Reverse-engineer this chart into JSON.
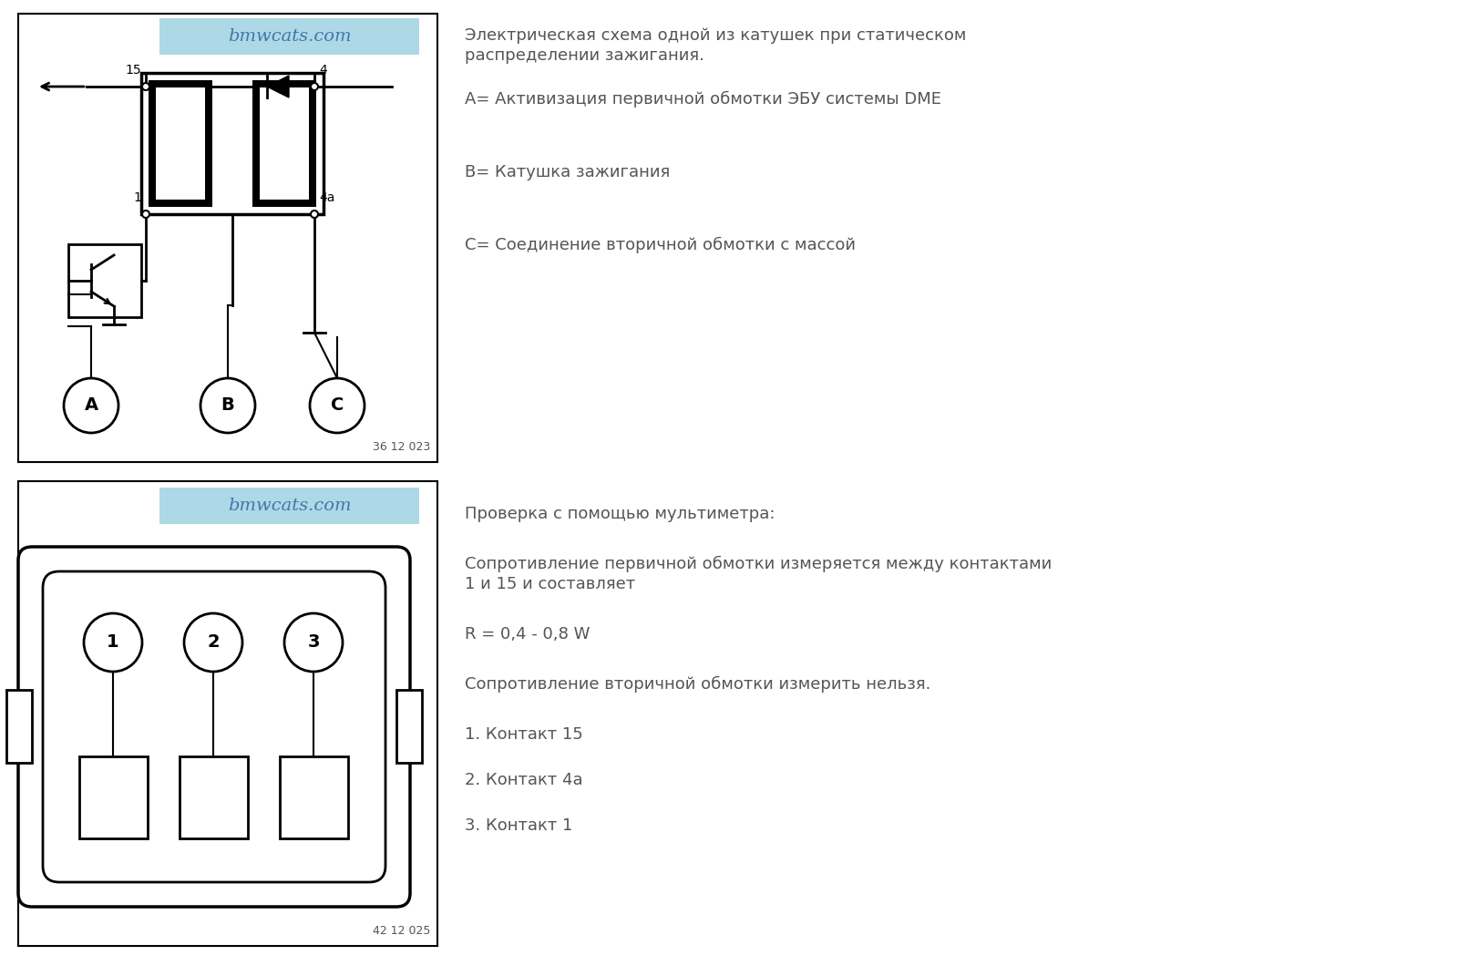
{
  "bg_color": "#ffffff",
  "text_color": "#555555",
  "watermark_bg": "#add8e6",
  "watermark_text_color": "#4477aa",
  "watermark_text": "bmwcats.com",
  "top_right_texts": [
    "Электрическая схема одной из катушек при статическом",
    "распределении зажигания.",
    "A= Активизация первичной обмотки ЭБУ системы DME",
    "B= Катушка зажигания",
    "C= Соединение вторичной обмотки с массой"
  ],
  "bottom_right_texts": [
    "Проверка с помощью мультиметра:",
    "Сопротивление первичной обмотки измеряется между контактами",
    "1 и 15 и составляет",
    "R = 0,4 - 0,8 W",
    "Сопротивление вторичной обмотки измерить нельзя.",
    "1. Контакт 15",
    "2. Контакт 4a",
    "3. Контакт 1"
  ],
  "fig_width": 16.24,
  "fig_height": 10.6,
  "dpi": 100
}
